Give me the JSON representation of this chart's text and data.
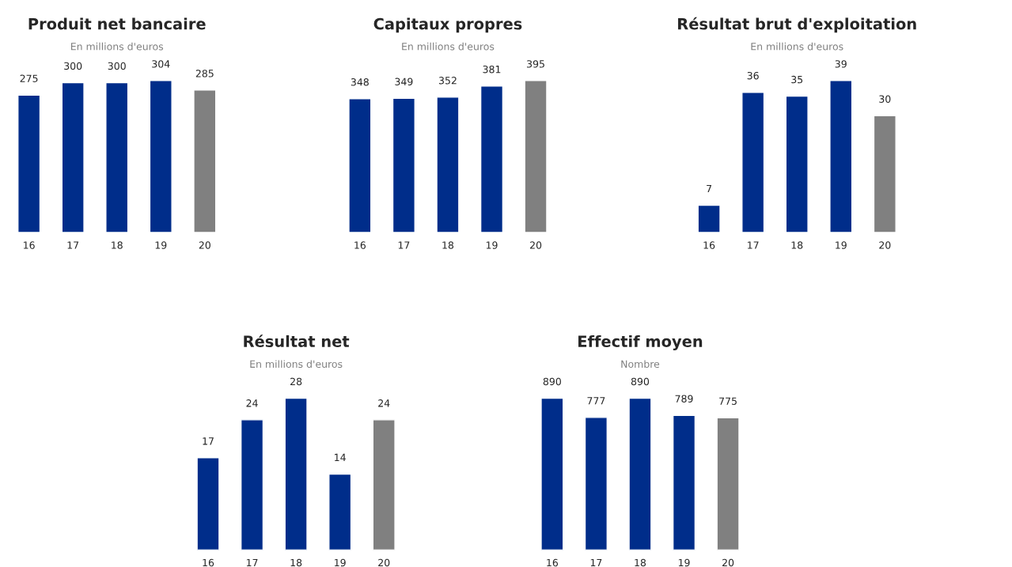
{
  "chart_data": [
    {
      "type": "bar",
      "title": "Produit net bancaire",
      "subtitle": "En millions d'euros",
      "categories": [
        "16",
        "17",
        "18",
        "19",
        "20"
      ],
      "values": [
        275,
        300,
        300,
        304,
        285
      ],
      "colors": [
        "#002d8a",
        "#002d8a",
        "#002d8a",
        "#002d8a",
        "#808080"
      ],
      "data_labels": true,
      "grid": false,
      "legend": false,
      "tick_labels": "x"
    },
    {
      "type": "bar",
      "title": "Capitaux propres",
      "subtitle": "En millions d'euros",
      "categories": [
        "16",
        "17",
        "18",
        "19",
        "20"
      ],
      "values": [
        348,
        349,
        352,
        381,
        395
      ],
      "colors": [
        "#002d8a",
        "#002d8a",
        "#002d8a",
        "#002d8a",
        "#808080"
      ],
      "data_labels": true,
      "grid": false,
      "legend": false,
      "tick_labels": "x"
    },
    {
      "type": "bar",
      "title": "Résultat brut d'exploitation",
      "subtitle": "En millions d'euros",
      "categories": [
        "16",
        "17",
        "18",
        "19",
        "20"
      ],
      "values": [
        7,
        36,
        35,
        39,
        30
      ],
      "colors": [
        "#002d8a",
        "#002d8a",
        "#002d8a",
        "#002d8a",
        "#808080"
      ],
      "data_labels": true,
      "grid": false,
      "legend": false,
      "tick_labels": "x"
    },
    {
      "type": "bar",
      "title": "Résultat net",
      "subtitle": "En millions d'euros",
      "categories": [
        "16",
        "17",
        "18",
        "19",
        "20"
      ],
      "values": [
        17,
        24,
        28,
        14,
        24
      ],
      "colors": [
        "#002d8a",
        "#002d8a",
        "#002d8a",
        "#002d8a",
        "#808080"
      ],
      "data_labels": true,
      "grid": false,
      "legend": false,
      "tick_labels": "x"
    },
    {
      "type": "bar",
      "title": "Effectif moyen",
      "subtitle": "Nombre",
      "categories": [
        "16",
        "17",
        "18",
        "19",
        "20"
      ],
      "values": [
        890,
        777,
        890,
        789,
        775
      ],
      "colors": [
        "#002d8a",
        "#002d8a",
        "#002d8a",
        "#002d8a",
        "#808080"
      ],
      "data_labels": true,
      "grid": false,
      "legend": false,
      "tick_labels": "x"
    }
  ]
}
